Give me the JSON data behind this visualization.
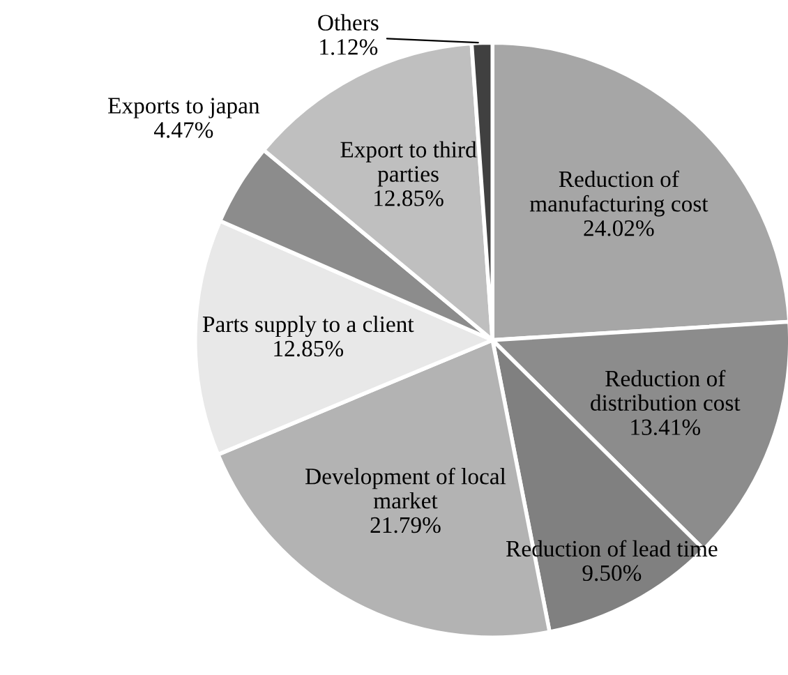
{
  "chart_data": {
    "type": "pie",
    "categories": [
      "Reduction of\nmanufacturing cost",
      "Reduction of\ndistribution cost",
      "Reduction of lead time",
      "Development of local\nmarket",
      "Parts supply to a client",
      "Exports to japan",
      "Export to third\nparties",
      "Others"
    ],
    "values": [
      24.02,
      13.41,
      9.5,
      21.79,
      12.85,
      4.47,
      12.85,
      1.12
    ],
    "value_labels": [
      "24.02%",
      "13.41%",
      "9.50%",
      "21.79%",
      "12.85%",
      "4.47%",
      "12.85%",
      "1.12%"
    ],
    "colors": [
      "#a6a6a6",
      "#8c8c8c",
      "#808080",
      "#b3b3b3",
      "#e8e8e8",
      "#8c8c8c",
      "#bfbfbf",
      "#404040"
    ],
    "legend": false
  }
}
